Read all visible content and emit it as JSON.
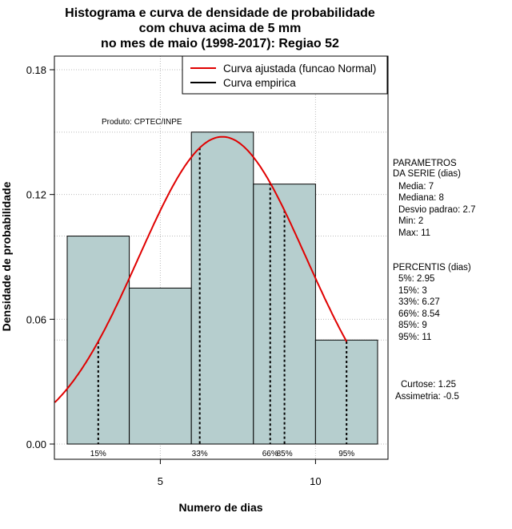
{
  "chart_data": {
    "type": "bar",
    "title_lines": [
      "Histograma e curva de densidade de probabilidade",
      "com chuva acima de 5 mm",
      "no mes de maio (1998-2017): Regiao 52"
    ],
    "xlabel": "Numero de dias",
    "ylabel": "Densidade de probabilidade",
    "xlim": [
      1.6,
      12.4
    ],
    "ylim": [
      0,
      0.186
    ],
    "x_ticks": [
      5,
      10
    ],
    "y_ticks": [
      "0.00",
      "0.06",
      "0.12",
      "0.18"
    ],
    "grid": "dotted",
    "bins": [
      {
        "start": 2,
        "end": 4,
        "density": 0.1
      },
      {
        "start": 4,
        "end": 6,
        "density": 0.075
      },
      {
        "start": 6,
        "end": 8,
        "density": 0.15
      },
      {
        "start": 8,
        "end": 10,
        "density": 0.125
      },
      {
        "start": 10,
        "end": 12,
        "density": 0.05
      }
    ],
    "bar_color": "#b6cece",
    "curve": {
      "name": "Curva ajustada (funcao Normal)",
      "color": "#e00000",
      "mean": 7,
      "sd": 2.7
    },
    "empirical_name": "Curva empirica",
    "legend_position": "top-right",
    "percentiles": [
      {
        "label": "15%",
        "x": 3
      },
      {
        "label": "33%",
        "x": 6.27
      },
      {
        "label": "66%",
        "x": 8.54
      },
      {
        "label": "85%",
        "x": 9
      },
      {
        "label": "95%",
        "x": 11
      }
    ],
    "product_label": "Produto: CPTEC/INPE"
  },
  "sidebar": {
    "parametros": [
      "PARAMETROS",
      "DA SERIE (dias)",
      "Media: 7",
      "Mediana: 8",
      "Desvio padrao: 2.7",
      "Min: 2",
      "Max: 11"
    ],
    "percentis": [
      "PERCENTIS (dias)",
      "5%: 2.95",
      "15%: 3",
      "33%: 6.27",
      "66%: 8.54",
      "85%: 9",
      "95%: 11"
    ],
    "stats": [
      "Curtose: 1.25",
      "Assimetria: -0.5"
    ]
  }
}
